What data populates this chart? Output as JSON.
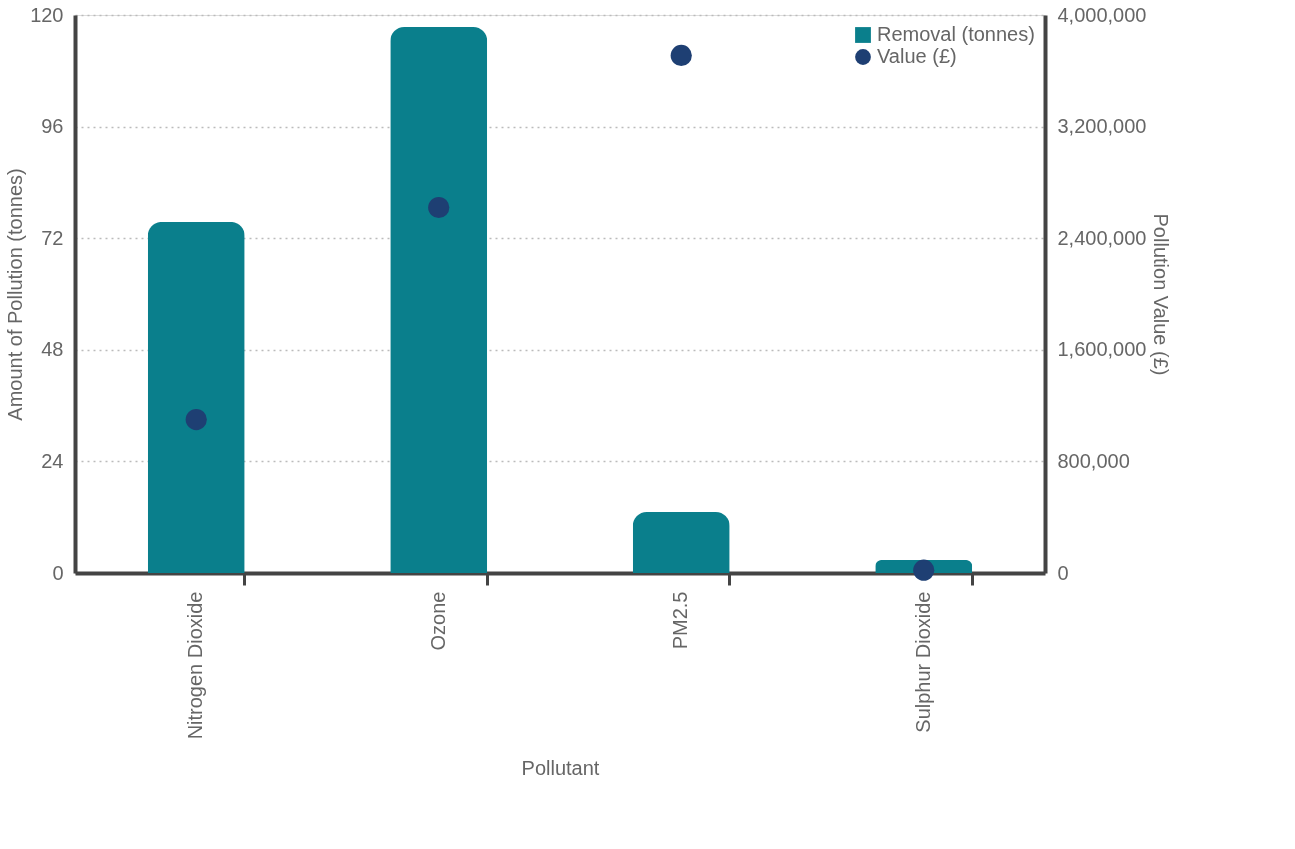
{
  "chart_data": {
    "type": "bar",
    "xlabel": "Pollutant",
    "ylabel": "Amount of Pollution (tonnes)",
    "y2label": "Pollution Value (£)",
    "categories": [
      "Nitrogen Dioxide",
      "Ozone",
      "PM2.5",
      "Sulphur Dioxide"
    ],
    "series": [
      {
        "name": "Removal (tonnes)",
        "color": "#0a7f8c",
        "values": [
          75.5,
          117.4,
          13.1,
          2.8
        ]
      },
      {
        "name": "Value (£)",
        "type": "scatter",
        "axis": "y2",
        "color": "#1e3f73",
        "values": [
          1100000,
          2620000,
          3710000,
          20000
        ]
      }
    ],
    "ylim": [
      0,
      120
    ],
    "yticks": [
      0,
      24,
      48,
      72,
      96,
      120
    ],
    "y2lim": [
      0,
      4000000
    ],
    "y2ticks": [
      0,
      {
        "value": 800000,
        "label": "800,000"
      },
      {
        "value": 1600000,
        "label": "1,600,000"
      },
      {
        "value": 2400000,
        "label": "2,400,000"
      },
      {
        "value": 3200000,
        "label": "3,200,000"
      },
      {
        "value": 4000000,
        "label": "4,000,000"
      }
    ],
    "grid": "y",
    "legend": "top right",
    "marker": "circle"
  }
}
